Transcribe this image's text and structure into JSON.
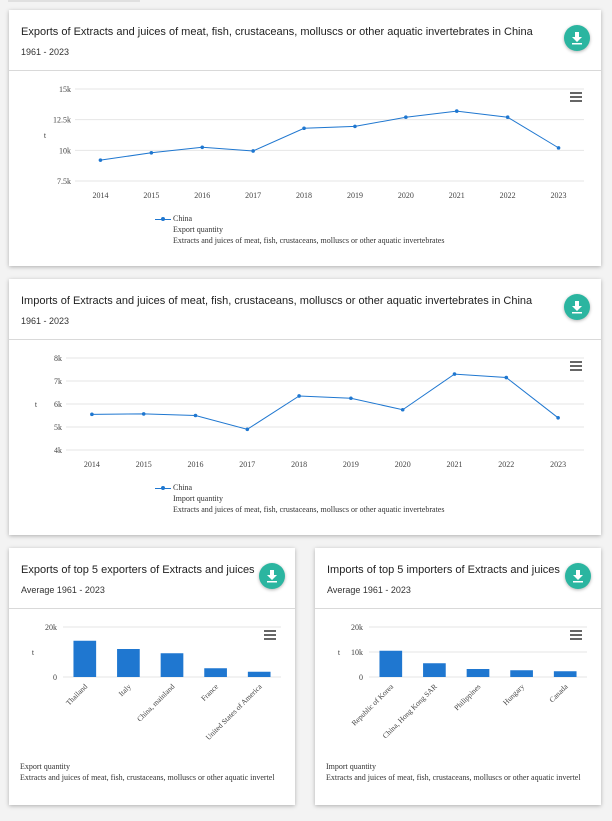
{
  "cards": [
    {
      "title": "Exports of Extracts and juices of meat, fish, crustaceans, molluscs or other aquatic invertebrates in China",
      "subtitle": "1961 - 2023",
      "legend": {
        "series": "China",
        "line1": "Export quantity",
        "line2": "Extracts and juices of meat, fish, crustaceans, molluscs or other aquatic invertebrates"
      }
    },
    {
      "title": "Imports of Extracts and juices of meat, fish, crustaceans, molluscs or other aquatic invertebrates in China",
      "subtitle": "1961 - 2023",
      "legend": {
        "series": "China",
        "line1": "Import quantity",
        "line2": "Extracts and juices of meat, fish, crustaceans, molluscs or other aquatic invertebrates"
      }
    },
    {
      "title": "Exports of top 5 exporters of Extracts and juices ...",
      "subtitle": "Average 1961 - 2023",
      "note": {
        "line1": "Export quantity",
        "line2": "Extracts and juices of meat, fish, crustaceans, molluscs or other aquatic invertel"
      }
    },
    {
      "title": "Imports of top 5 importers of Extracts and juices ...",
      "subtitle": "Average 1961 - 2023",
      "note": {
        "line1": "Import quantity",
        "line2": "Extracts and juices of meat, fish, crustaceans, molluscs or other aquatic invertel"
      }
    }
  ],
  "icons": {
    "download": "download-icon",
    "menu": "hamburger-menu-icon"
  },
  "colors": {
    "series": "#1f77d0",
    "accent": "#2bb5a0",
    "grid": "#e6e6e6"
  },
  "chart_data": [
    {
      "type": "line",
      "x": [
        "2014",
        "2015",
        "2016",
        "2017",
        "2018",
        "2019",
        "2020",
        "2021",
        "2022",
        "2023"
      ],
      "series": [
        {
          "name": "China",
          "values": [
            9200,
            9800,
            10250,
            9950,
            11800,
            11950,
            12700,
            13200,
            12700,
            10200
          ]
        }
      ],
      "ylabel": "t",
      "ylim": [
        7500,
        15000
      ],
      "yticks": [
        7500,
        10000,
        12500,
        15000
      ],
      "ytick_labels": [
        "7.5k",
        "10k",
        "12.5k",
        "15k"
      ]
    },
    {
      "type": "line",
      "x": [
        "2014",
        "2015",
        "2016",
        "2017",
        "2018",
        "2019",
        "2020",
        "2021",
        "2022",
        "2023"
      ],
      "series": [
        {
          "name": "China",
          "values": [
            5550,
            5570,
            5500,
            4900,
            6350,
            6250,
            5750,
            7300,
            7150,
            5400
          ]
        }
      ],
      "ylabel": "t",
      "ylim": [
        4000,
        8000
      ],
      "yticks": [
        4000,
        5000,
        6000,
        7000,
        8000
      ],
      "ytick_labels": [
        "4k",
        "5k",
        "6k",
        "7k",
        "8k"
      ]
    },
    {
      "type": "bar",
      "categories": [
        "Thailand",
        "Italy",
        "China, mainland",
        "France",
        "United States of America"
      ],
      "values": [
        14500,
        11200,
        9500,
        3500,
        2100
      ],
      "ylabel": "t",
      "ylim": [
        0,
        20000
      ],
      "yticks": [
        0,
        20000
      ],
      "ytick_labels": [
        "0",
        "20k"
      ]
    },
    {
      "type": "bar",
      "categories": [
        "Republic of Korea",
        "China, Hong Kong SAR",
        "Philippines",
        "Hungary",
        "Canada"
      ],
      "values": [
        10500,
        5500,
        3200,
        2700,
        2300
      ],
      "ylabel": "t",
      "ylim": [
        0,
        20000
      ],
      "yticks": [
        0,
        10000,
        20000
      ],
      "ytick_labels": [
        "0",
        "10k",
        "20k"
      ]
    }
  ]
}
